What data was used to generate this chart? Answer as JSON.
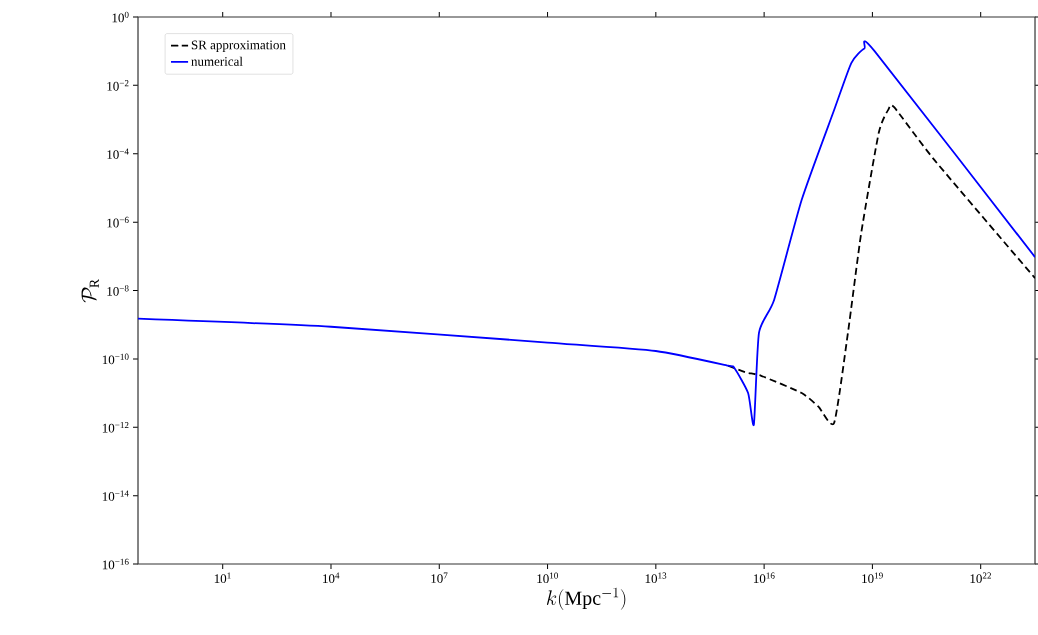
{
  "chart_data": {
    "type": "line",
    "xlabel": "k(\\mathrm{Mpc}^{-1})",
    "ylabel": "\\mathcal{P}_{\\mathrm{R}}",
    "log": "xy",
    "grid": false,
    "legend": "top left",
    "xlim": [
      0.045,
      3.2e+23
    ],
    "ylim": [
      1e-16,
      1
    ],
    "xticks": [
      {
        "value": 10,
        "label": "10$^{1}$"
      },
      {
        "value": 10000.0,
        "label": "10$^{4}$"
      },
      {
        "value": 10000000.0,
        "label": "10$^{7}$"
      },
      {
        "value": 10000000000.0,
        "label": "10$^{10}$"
      },
      {
        "value": 10000000000000.0,
        "label": "10$^{13}$"
      },
      {
        "value": 1e+16,
        "label": "10$^{16}$"
      },
      {
        "value": 1e+19,
        "label": "10$^{19}$"
      },
      {
        "value": 1e+22,
        "label": "10$^{22}$"
      }
    ],
    "yticks": [
      {
        "value": 1e-16,
        "label": "10$^{−16}$"
      },
      {
        "value": 1e-14,
        "label": "10$^{−14}$"
      },
      {
        "value": 1e-12,
        "label": "10$^{−12}$"
      },
      {
        "value": 1e-10,
        "label": "10$^{−10}$"
      },
      {
        "value": 1e-08,
        "label": "10$^{−8}$"
      },
      {
        "value": 1e-06,
        "label": "10$^{−6}$"
      },
      {
        "value": 0.0001,
        "label": "10$^{−4}$"
      },
      {
        "value": 0.01,
        "label": "10$^{−2}$"
      },
      {
        "value": 1,
        "label": "10$^{0}$"
      }
    ],
    "series": [
      {
        "name": "SR   approximation",
        "color": "#000000",
        "line_style": "dashed",
        "x": [
          1000000000000000.0,
          3200000000000000.0,
          8300000000000000.0,
          1.1e+17,
          3.2e+17,
          8.7e+17,
          2.1e+18,
          4.9e+18,
          1.5e+19,
          2.8e+19,
          4e+19,
          5.2e+20,
          3.2e+23
        ],
        "values": [
          6.3e-11,
          4e-11,
          3.2e-11,
          1e-11,
          4e-12,
          1.35e-12,
          5.8e-10,
          4.8e-07,
          0.00041,
          0.002,
          0.0023,
          6.6e-05,
          2.3e-08
        ]
      },
      {
        "name": "numerical",
        "color": "#0000ff",
        "line_style": "solid",
        "x": [
          0.045,
          10000.0,
          10000000000.0,
          10000000000000.0,
          1000000000000000.0,
          1500000000000000.0,
          3600000000000000.0,
          5200000000000000.0,
          7200000000000000.0,
          1.9e+16,
          1.1e+17,
          8.7e+17,
          2.6e+18,
          6e+18,
          1.15e+19,
          3.2e+23
        ],
        "values": [
          1.5e-09,
          8.7e-10,
          3e-10,
          1.7e-10,
          6.3e-11,
          5.4e-11,
          1e-11,
          1.2e-12,
          5.8e-10,
          5.4e-09,
          4.5e-06,
          0.0019,
          0.045,
          0.12,
          0.1,
          9.5e-08
        ]
      }
    ]
  }
}
